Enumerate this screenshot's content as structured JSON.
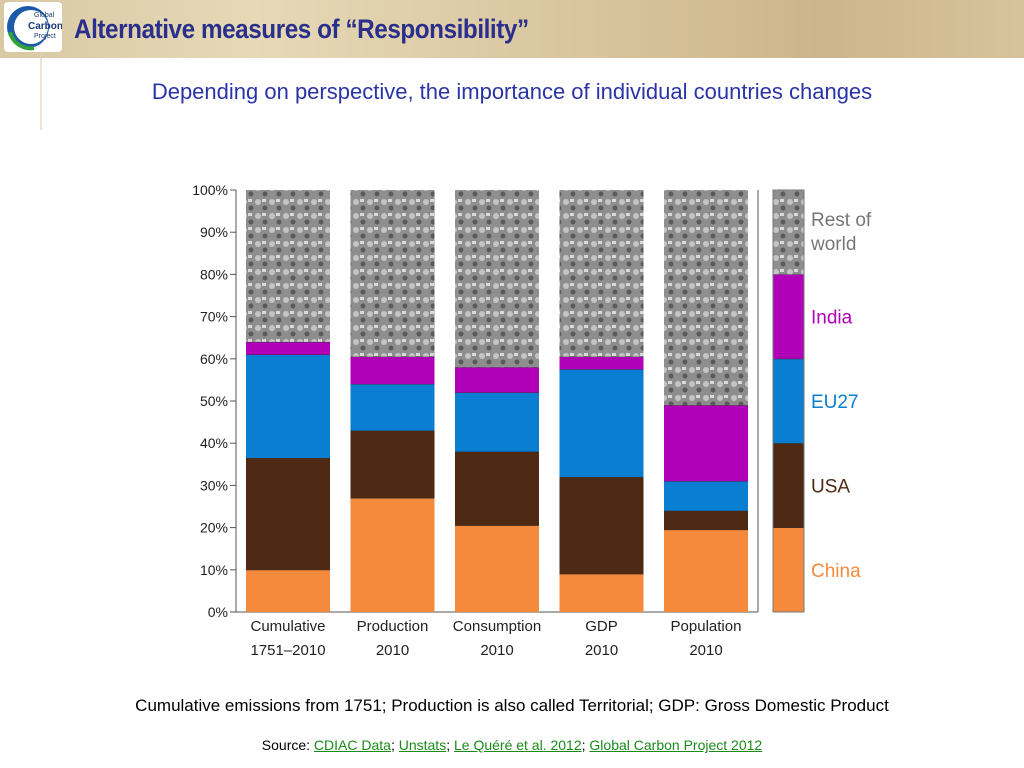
{
  "header": {
    "title": "Alternative measures of “Responsibility”",
    "logo_text": [
      "Global",
      "Carbon",
      "Project"
    ]
  },
  "subtitle": "Depending on perspective, the importance of individual countries changes",
  "caption": "Cumulative emissions from 1751; Production is also called Territorial; GDP: Gross Domestic Product",
  "source": {
    "prefix": "Source: ",
    "links": [
      "CDIAC Data",
      "Unstats",
      "Le Quéré et al. 2012",
      "Global Carbon Project 2012"
    ],
    "separator": "; "
  },
  "colors": {
    "China": "#f58a3c",
    "USA": "#4e2a14",
    "EU27": "#0a7ed0",
    "India": "#b000b8",
    "Rest of world": "#a8a8a8"
  },
  "chart_data": {
    "type": "bar",
    "stacked": true,
    "categories": [
      [
        "Cumulative",
        "1751–2010"
      ],
      [
        "Production",
        "2010"
      ],
      [
        "Consumption",
        "2010"
      ],
      [
        "GDP",
        "2010"
      ],
      [
        "Population",
        "2010"
      ]
    ],
    "series": [
      {
        "name": "China",
        "values": [
          10,
          27,
          20.5,
          9,
          19.5
        ]
      },
      {
        "name": "USA",
        "values": [
          26.5,
          16,
          17.5,
          23,
          4.5
        ]
      },
      {
        "name": "EU27",
        "values": [
          24.5,
          11,
          14,
          25.5,
          7
        ]
      },
      {
        "name": "India",
        "values": [
          3,
          6.5,
          6,
          3,
          18
        ]
      },
      {
        "name": "Rest of world",
        "values": [
          36,
          39.5,
          42,
          39.5,
          51
        ]
      }
    ],
    "legend": {
      "placement": "right",
      "entries": [
        "Rest of world",
        "India",
        "EU27",
        "USA",
        "China"
      ],
      "bar_bounds": [
        0,
        20,
        40,
        60,
        80,
        100
      ]
    },
    "yticks": [
      "0%",
      "10%",
      "20%",
      "30%",
      "40%",
      "50%",
      "60%",
      "70%",
      "80%",
      "90%",
      "100%"
    ],
    "ylim": [
      0,
      100
    ],
    "grid": false
  }
}
